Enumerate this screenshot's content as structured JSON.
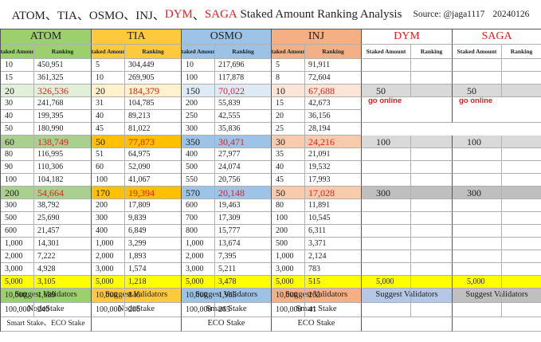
{
  "title": {
    "prefix": "ATOM、TIA、OSMO、INJ、",
    "dym": "DYM",
    "sep": "、",
    "saga": "SAGA",
    "suffix": " Staked Amount Ranking Analysis",
    "source": "Source: @jaga1117",
    "date": "20240126"
  },
  "headers": [
    "ATOM",
    "TIA",
    "OSMO",
    "INJ",
    "DYM",
    "SAGA"
  ],
  "subheaders": {
    "staked": "Staked Amount",
    "ranking": "Ranking"
  },
  "rows": [
    {
      "atom": [
        "10",
        "450,951"
      ],
      "tia": [
        "5",
        "304,449"
      ],
      "osmo": [
        "10",
        "217,696"
      ],
      "inj": [
        "5",
        "91,911"
      ],
      "dym": [
        "",
        ""
      ],
      "saga": [
        "",
        ""
      ]
    },
    {
      "atom": [
        "15",
        "361,325"
      ],
      "tia": [
        "10",
        "269,905"
      ],
      "osmo": [
        "100",
        "117,878"
      ],
      "inj": [
        "8",
        "72,604"
      ],
      "dym": [
        "",
        ""
      ],
      "saga": [
        "",
        ""
      ]
    },
    {
      "atom": [
        "20",
        "326,536"
      ],
      "tia": [
        "20",
        "184,379"
      ],
      "osmo": [
        "150",
        "70,022"
      ],
      "inj": [
        "10",
        "67,688"
      ],
      "dym": [
        "50",
        ""
      ],
      "saga": [
        "50",
        ""
      ]
    },
    {
      "atom": [
        "30",
        "241,768"
      ],
      "tia": [
        "31",
        "104,785"
      ],
      "osmo": [
        "200",
        "55,839"
      ],
      "inj": [
        "15",
        "42,673"
      ],
      "dym": [
        "",
        ""
      ],
      "saga": [
        "",
        ""
      ]
    },
    {
      "atom": [
        "40",
        "199,395"
      ],
      "tia": [
        "40",
        "89,213"
      ],
      "osmo": [
        "250",
        "42,555"
      ],
      "inj": [
        "20",
        "36,156"
      ],
      "dym": [
        "",
        ""
      ],
      "saga": [
        "",
        ""
      ]
    },
    {
      "atom": [
        "50",
        "180,990"
      ],
      "tia": [
        "45",
        "81,022"
      ],
      "osmo": [
        "300",
        "35,836"
      ],
      "inj": [
        "25",
        "28,194"
      ],
      "dym": [
        "",
        ""
      ],
      "saga": [
        "",
        ""
      ]
    },
    {
      "atom": [
        "60",
        "138,749"
      ],
      "tia": [
        "50",
        "77,873"
      ],
      "osmo": [
        "350",
        "30,471"
      ],
      "inj": [
        "30",
        "24,216"
      ],
      "dym": [
        "100",
        ""
      ],
      "saga": [
        "100",
        ""
      ]
    },
    {
      "atom": [
        "80",
        "116,995"
      ],
      "tia": [
        "51",
        "64,975"
      ],
      "osmo": [
        "400",
        "27,977"
      ],
      "inj": [
        "35",
        "21,091"
      ],
      "dym": [
        "",
        ""
      ],
      "saga": [
        "",
        ""
      ]
    },
    {
      "atom": [
        "90",
        "110,306"
      ],
      "tia": [
        "60",
        "52,090"
      ],
      "osmo": [
        "500",
        "24,074"
      ],
      "inj": [
        "40",
        "19,532"
      ],
      "dym": [
        "",
        ""
      ],
      "saga": [
        "",
        ""
      ]
    },
    {
      "atom": [
        "100",
        "104,182"
      ],
      "tia": [
        "100",
        "41,067"
      ],
      "osmo": [
        "550",
        "20,756"
      ],
      "inj": [
        "45",
        "17,993"
      ],
      "dym": [
        "",
        ""
      ],
      "saga": [
        "",
        ""
      ]
    },
    {
      "atom": [
        "200",
        "54,664"
      ],
      "tia": [
        "170",
        "19,394"
      ],
      "osmo": [
        "570",
        "20,148"
      ],
      "inj": [
        "50",
        "17,028"
      ],
      "dym": [
        "300",
        ""
      ],
      "saga": [
        "300",
        ""
      ]
    },
    {
      "atom": [
        "300",
        "38,792"
      ],
      "tia": [
        "200",
        "17,809"
      ],
      "osmo": [
        "600",
        "19,463"
      ],
      "inj": [
        "80",
        "11,891"
      ],
      "dym": [
        "",
        ""
      ],
      "saga": [
        "",
        ""
      ]
    },
    {
      "atom": [
        "500",
        "25,690"
      ],
      "tia": [
        "300",
        "9,839"
      ],
      "osmo": [
        "700",
        "17,309"
      ],
      "inj": [
        "100",
        "10,545"
      ],
      "dym": [
        "",
        ""
      ],
      "saga": [
        "",
        ""
      ]
    },
    {
      "atom": [
        "600",
        "21,457"
      ],
      "tia": [
        "400",
        "6,849"
      ],
      "osmo": [
        "800",
        "15,777"
      ],
      "inj": [
        "200",
        "6,311"
      ],
      "dym": [
        "",
        ""
      ],
      "saga": [
        "",
        ""
      ]
    },
    {
      "atom": [
        "1,000",
        "14,301"
      ],
      "tia": [
        "1,000",
        "3,299"
      ],
      "osmo": [
        "1,000",
        "13,674"
      ],
      "inj": [
        "500",
        "3,371"
      ],
      "dym": [
        "",
        ""
      ],
      "saga": [
        "",
        ""
      ]
    },
    {
      "atom": [
        "2,000",
        "7,222"
      ],
      "tia": [
        "2,000",
        "1,893"
      ],
      "osmo": [
        "2,000",
        "7,395"
      ],
      "inj": [
        "1,000",
        "2,124"
      ],
      "dym": [
        "",
        ""
      ],
      "saga": [
        "",
        ""
      ]
    },
    {
      "atom": [
        "3,000",
        "4,928"
      ],
      "tia": [
        "3,000",
        "1,574"
      ],
      "osmo": [
        "3,000",
        "5,211"
      ],
      "inj": [
        "3,000",
        "783"
      ],
      "dym": [
        "",
        ""
      ],
      "saga": [
        "",
        ""
      ]
    },
    {
      "atom": [
        "5,000",
        "3,105"
      ],
      "tia": [
        "5,000",
        "1,218"
      ],
      "osmo": [
        "5,000",
        "3,478"
      ],
      "inj": [
        "5,000",
        "515"
      ],
      "dym": [
        "5,000",
        ""
      ],
      "saga": [
        "5,000",
        ""
      ]
    },
    {
      "atom": [
        "10,000",
        "1,689"
      ],
      "tia": [
        "10,000",
        "846"
      ],
      "osmo": [
        "10,000",
        "1,965"
      ],
      "inj": [
        "10,000",
        "262"
      ],
      "dym": [
        "",
        ""
      ],
      "saga": [
        "",
        ""
      ]
    },
    {
      "atom": [
        "100,000",
        "240"
      ],
      "tia": [
        "100,000",
        "286"
      ],
      "osmo": [
        "100,000",
        "265"
      ],
      "inj": [
        "100,000",
        "41"
      ],
      "dym": [
        "",
        ""
      ],
      "saga": [
        "",
        ""
      ]
    }
  ],
  "waiting_note": "Waiting for mainnet to go online",
  "suggest_label": "Suggest Validators",
  "validators": {
    "atom": [
      "NodeStake",
      "Smart Stake、ECO Stake"
    ],
    "tia": [
      "NodeStake",
      ""
    ],
    "osmo": [
      "Smart Stake",
      "ECO Stake"
    ],
    "inj": [
      "Smart Stake",
      "ECO Stake"
    ],
    "dym": [
      "",
      ""
    ],
    "saga": [
      "",
      ""
    ]
  },
  "colors": {
    "atom": "#9bd06c",
    "tia": "#ffc93c",
    "osmo": "#9cc3e6",
    "inj": "#f4b084",
    "dym": "#b4c7e7",
    "saga": "#bfbfbf",
    "highlight_red": "#e02020",
    "yellow_row": "#ffff00"
  }
}
